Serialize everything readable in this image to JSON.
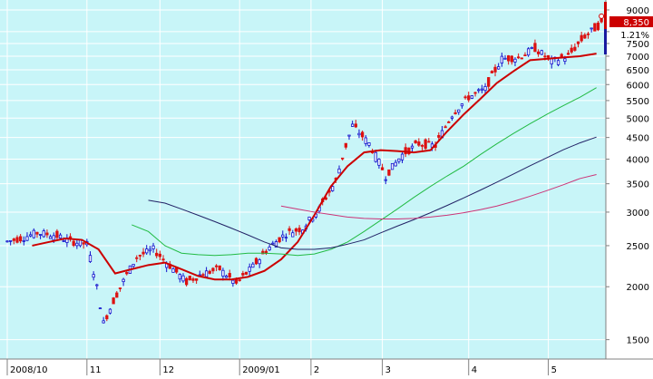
{
  "colors": {
    "background": "#c8f5f8",
    "grid": "#ffffff",
    "up_candle": "#dd1111",
    "down_candle": "#1111cc",
    "ma_short": "#cc0000",
    "ma_medium": "#22bb44",
    "ma_long": "#222266",
    "ma_longest": "#cc3377",
    "axis_text": "#000000",
    "indicator_red": "#cc0000",
    "indicator_blue": "#1a1aa0"
  },
  "chart_data": {
    "type": "candlestick",
    "scale": "log",
    "ylim": [
      1350,
      9500
    ],
    "y_ticks": [
      1500,
      2000,
      2500,
      3000,
      3500,
      4000,
      4500,
      5000,
      5500,
      6000,
      6500,
      7000,
      7500,
      8000,
      9000
    ],
    "x_tick_labels": [
      {
        "label": "2008/10",
        "week": 0
      },
      {
        "label": "11",
        "week": 4.8
      },
      {
        "label": "12",
        "week": 9.2
      },
      {
        "label": "2009/01",
        "week": 14.0
      },
      {
        "label": "2",
        "week": 18.3
      },
      {
        "label": "3",
        "week": 22.6
      },
      {
        "label": "4",
        "week": 27.8
      },
      {
        "label": "5",
        "week": 32.6
      }
    ],
    "last_price": "8,350",
    "change_pct": "1.21%",
    "closes": [
      2600,
      2680,
      2650,
      2560,
      2520,
      1640,
      1990,
      2350,
      2450,
      2240,
      2050,
      2150,
      2200,
      2030,
      2230,
      2480,
      2670,
      2750,
      3050,
      3550,
      4800,
      4350,
      3650,
      4100,
      4350,
      4300,
      5100,
      5600,
      5850,
      6900,
      6950,
      7300,
      6800,
      7000,
      7800,
      8350
    ],
    "series": [
      {
        "name": "",
        "role": "ma_short",
        "values": [
          2500,
          2550,
          2600,
          2580,
          2450,
          2150,
          2200,
          2250,
          2280,
          2200,
          2120,
          2080,
          2080,
          2110,
          2180,
          2320,
          2550,
          2950,
          3450,
          3850,
          4150,
          4200,
          4180,
          4150,
          4200,
          4650,
          5100,
          5550,
          6050,
          6450,
          6850,
          6900,
          6950,
          7000,
          7100
        ]
      },
      {
        "name": "",
        "role": "ma_medium",
        "values": [
          2800,
          2700,
          2500,
          2400,
          2380,
          2370,
          2380,
          2400,
          2400,
          2390,
          2370,
          2390,
          2450,
          2550,
          2700,
          2870,
          3050,
          3250,
          3450,
          3650,
          3850,
          4100,
          4350,
          4600,
          4850,
          5100,
          5350,
          5600,
          5900
        ]
      },
      {
        "name": "",
        "role": "ma_long",
        "values": [
          3200,
          3150,
          3050,
          2950,
          2850,
          2750,
          2650,
          2550,
          2470,
          2450,
          2450,
          2470,
          2520,
          2580,
          2680,
          2780,
          2880,
          2990,
          3110,
          3240,
          3380,
          3530,
          3690,
          3860,
          4030,
          4210,
          4370,
          4510
        ]
      },
      {
        "name": "",
        "role": "ma_longest",
        "values": [
          3100,
          3050,
          3000,
          2960,
          2920,
          2900,
          2890,
          2890,
          2900,
          2920,
          2950,
          2990,
          3040,
          3100,
          3180,
          3270,
          3370,
          3480,
          3600,
          3680
        ]
      }
    ]
  }
}
